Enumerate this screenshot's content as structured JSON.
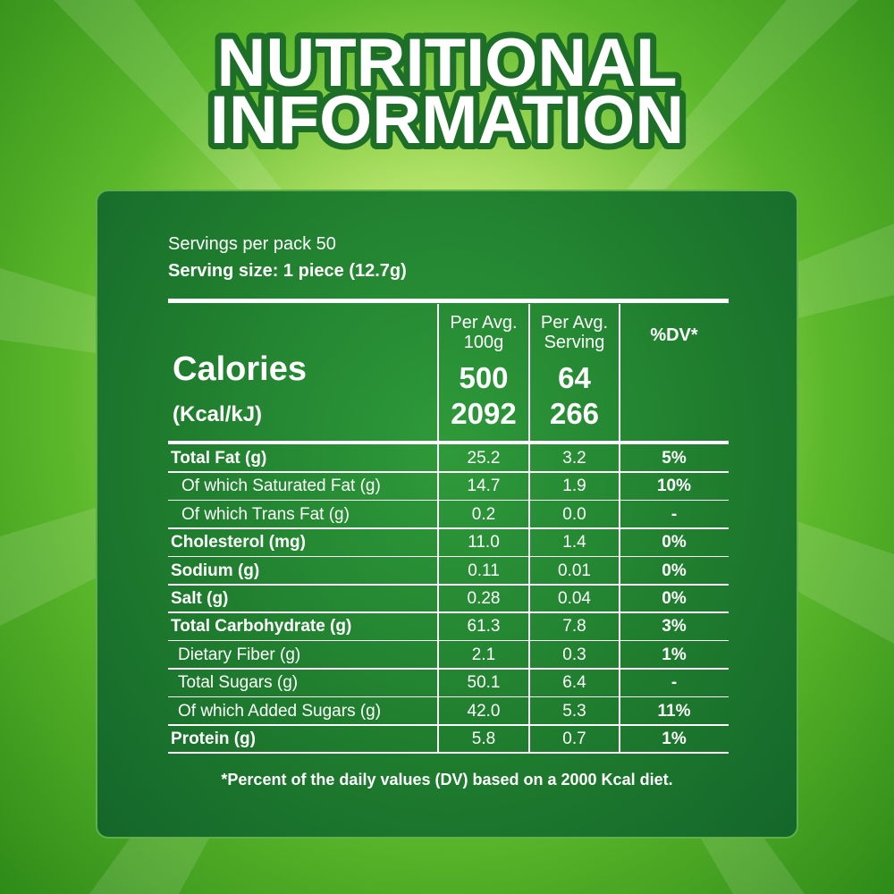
{
  "title": [
    "NUTRITIONAL",
    "INFORMATION"
  ],
  "servings_per_pack": "Servings per pack 50",
  "serving_size": "Serving size:  1 piece  (12.7g)",
  "calories": {
    "label": "Calories",
    "unit": "(Kcal/kJ)",
    "headers": [
      [
        "Per Avg.",
        "100g"
      ],
      [
        "Per Avg.",
        "Serving"
      ],
      [
        "%DV*"
      ]
    ],
    "per_100g": [
      "500",
      "2092"
    ],
    "per_serving": [
      "64",
      "266"
    ]
  },
  "table": {
    "rows": [
      [
        "Total Fat (g)",
        "25.2",
        "3.2",
        "5%"
      ],
      [
        "Of which Saturated Fat (g)",
        "14.7",
        "1.9",
        "10%"
      ],
      [
        "Of which Trans Fat (g)",
        "0.2",
        "0.0",
        "-"
      ],
      [
        "Cholesterol (mg)",
        "11.0",
        "1.4",
        "0%"
      ],
      [
        "Sodium (g)",
        "0.11",
        "0.01",
        "0%"
      ],
      [
        "Salt (g)",
        "0.28",
        "0.04",
        "0%"
      ],
      [
        "Total Carbohydrate (g)",
        "61.3",
        "7.8",
        "3%"
      ],
      [
        "Dietary Fiber (g)",
        "2.1",
        "0.3",
        "1%"
      ],
      [
        "Total Sugars (g)",
        "50.1",
        "6.4",
        "-"
      ],
      [
        "Of which Added Sugars (g)",
        "42.0",
        "5.3",
        "11%"
      ],
      [
        "Protein (g)",
        "5.8",
        "0.7",
        "1%"
      ]
    ]
  },
  "footnote": "*Percent of the daily values (DV) based on a 2000 Kcal diet."
}
